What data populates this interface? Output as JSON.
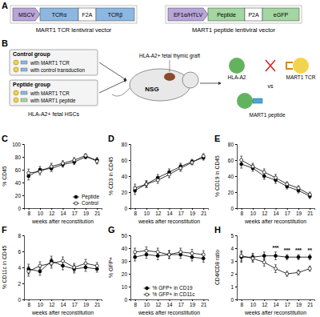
{
  "chart_data": [
    {
      "type": "line",
      "title": "C",
      "x_label": "weeks after reconstitution",
      "y_label": "% CD45",
      "categories": [
        "8",
        "10",
        "12",
        "14",
        "17",
        "19",
        "21"
      ],
      "ylim": [
        0,
        100
      ],
      "yticks": [
        0,
        20,
        40,
        60,
        80,
        100
      ],
      "legend": "lower right",
      "series": [
        {
          "name": "Peptide",
          "color": "#000000",
          "marker": "circle",
          "values": [
            50,
            60,
            62,
            68,
            72,
            80,
            75
          ],
          "errors": [
            6,
            5,
            5,
            4,
            4,
            3,
            4
          ]
        },
        {
          "name": "Control",
          "color": "#000000",
          "marker": "circle-open",
          "values": [
            55,
            57,
            65,
            70,
            75,
            82,
            73
          ],
          "errors": [
            6,
            5,
            5,
            4,
            4,
            3,
            4
          ]
        }
      ]
    },
    {
      "type": "line",
      "title": "D",
      "x_label": "weeks after reconstitution",
      "y_label": "% CD3 in CD45",
      "categories": [
        "8",
        "10",
        "12",
        "14",
        "17",
        "19",
        "21"
      ],
      "ylim": [
        0,
        80
      ],
      "yticks": [
        0,
        20,
        40,
        60,
        80
      ],
      "series": [
        {
          "name": "Peptide",
          "color": "#000000",
          "marker": "circle",
          "values": [
            22,
            30,
            38,
            45,
            52,
            58,
            63
          ],
          "errors": [
            5,
            4,
            4,
            4,
            4,
            3,
            3
          ]
        },
        {
          "name": "Control",
          "color": "#000000",
          "marker": "circle-open",
          "values": [
            25,
            30,
            35,
            42,
            50,
            57,
            65
          ],
          "errors": [
            5,
            4,
            4,
            4,
            4,
            3,
            3
          ]
        }
      ]
    },
    {
      "type": "line",
      "title": "E",
      "x_label": "weeks after reconstitution",
      "y_label": "% CD19 in CD45",
      "categories": [
        "8",
        "10",
        "12",
        "14",
        "17",
        "19",
        "21"
      ],
      "ylim": [
        0,
        80
      ],
      "yticks": [
        0,
        20,
        40,
        60,
        80
      ],
      "series": [
        {
          "name": "Peptide",
          "color": "#000000",
          "marker": "circle",
          "values": [
            55,
            50,
            40,
            35,
            27,
            22,
            15
          ],
          "errors": [
            5,
            4,
            4,
            4,
            3,
            3,
            3
          ]
        },
        {
          "name": "Control",
          "color": "#000000",
          "marker": "circle-open",
          "values": [
            60,
            52,
            45,
            38,
            30,
            25,
            17
          ],
          "errors": [
            5,
            4,
            4,
            4,
            3,
            3,
            3
          ]
        }
      ]
    },
    {
      "type": "line",
      "title": "F",
      "x_label": "weeks after reconstitution",
      "y_label": "% CD11c in CD45",
      "categories": [
        "8",
        "10",
        "12",
        "14",
        "17",
        "19",
        "21"
      ],
      "ylim": [
        0,
        8
      ],
      "yticks": [
        0,
        2,
        4,
        6,
        8
      ],
      "series": [
        {
          "name": "Peptide",
          "color": "#000000",
          "marker": "circle",
          "values": [
            3.8,
            3.5,
            4.8,
            4.2,
            3.8,
            4.0,
            3.8
          ],
          "errors": [
            0.6,
            0.5,
            0.6,
            0.5,
            0.5,
            0.5,
            0.4
          ]
        },
        {
          "name": "Control",
          "color": "#000000",
          "marker": "circle-open",
          "values": [
            3.5,
            4.2,
            4.5,
            4.8,
            4.0,
            4.5,
            4.2
          ],
          "errors": [
            0.6,
            0.5,
            0.6,
            0.5,
            0.5,
            0.5,
            0.4
          ]
        }
      ]
    },
    {
      "type": "line",
      "title": "G",
      "x_label": "weeks after reconstitution",
      "y_label": "% GFP+",
      "categories": [
        "8",
        "10",
        "12",
        "14",
        "17",
        "19",
        "21"
      ],
      "ylim": [
        0,
        50
      ],
      "yticks": [
        0,
        10,
        20,
        30,
        40,
        50
      ],
      "legend": "lower center",
      "series": [
        {
          "name": "% GFP+ in CD19",
          "color": "#000000",
          "marker": "circle",
          "values": [
            33,
            35,
            34,
            35,
            35,
            33,
            32
          ],
          "errors": [
            3,
            3,
            3,
            3,
            3,
            3,
            3
          ]
        },
        {
          "name": "% GFP+ in CD11c",
          "color": "#000000",
          "marker": "circle-open",
          "values": [
            37,
            38,
            37,
            35,
            37,
            36,
            35
          ],
          "errors": [
            3,
            3,
            3,
            3,
            3,
            3,
            3
          ]
        }
      ]
    },
    {
      "type": "line",
      "title": "H",
      "x_label": "weeks after reconstitution",
      "y_label": "CD4/CD8 ratio",
      "categories": [
        "8",
        "10",
        "12",
        "14",
        "17",
        "19",
        "21"
      ],
      "ylim": [
        0,
        5
      ],
      "yticks": [
        0,
        1,
        2,
        3,
        4,
        5
      ],
      "annotations": [
        {
          "text": "***",
          "x": "14"
        },
        {
          "text": "***",
          "x": "17"
        },
        {
          "text": "***",
          "x": "19"
        },
        {
          "text": "**",
          "x": "21"
        }
      ],
      "series": [
        {
          "name": "Peptide",
          "color": "#000000",
          "marker": "circle",
          "values": [
            3.3,
            3.3,
            3.4,
            3.4,
            3.3,
            3.3,
            3.3
          ],
          "errors": [
            0.4,
            0.3,
            0.3,
            0.3,
            0.2,
            0.2,
            0.2
          ]
        },
        {
          "name": "Control",
          "color": "#000000",
          "marker": "circle-open",
          "values": [
            3.4,
            3.2,
            2.9,
            2.4,
            2.0,
            2.1,
            2.4
          ],
          "errors": [
            0.4,
            0.3,
            0.3,
            0.3,
            0.2,
            0.2,
            0.2
          ]
        }
      ]
    }
  ],
  "diagram": {
    "panel_a": {
      "label": "A",
      "vectors": [
        {
          "parts": [
            "MSCV",
            "TCRα",
            "F2A",
            "TCRβ"
          ],
          "caption": "MART1 TCR lentiviral vector"
        },
        {
          "parts": [
            "EF1α/HTLV",
            "Peptide",
            "P2A",
            "eGFP"
          ],
          "caption": "MART1 peptide lentiviral vector"
        }
      ]
    },
    "panel_b": {
      "label": "B",
      "groups": [
        {
          "name": "Control group",
          "lines": [
            "with MART1 TCR",
            "with control transduction"
          ]
        },
        {
          "name": "Peptide group",
          "lines": [
            "with MART1 TCR",
            "with MART1 peptide"
          ]
        }
      ],
      "hsc_label": "HLA-A2+ fetal HSCs",
      "mouse": "NSG",
      "graft": "HLA-A2+ fetal thymic graft",
      "hla": "HLA-A2",
      "tcr": "MART1 TCR",
      "vs": "vs",
      "peptide": "MART1 peptide"
    }
  }
}
